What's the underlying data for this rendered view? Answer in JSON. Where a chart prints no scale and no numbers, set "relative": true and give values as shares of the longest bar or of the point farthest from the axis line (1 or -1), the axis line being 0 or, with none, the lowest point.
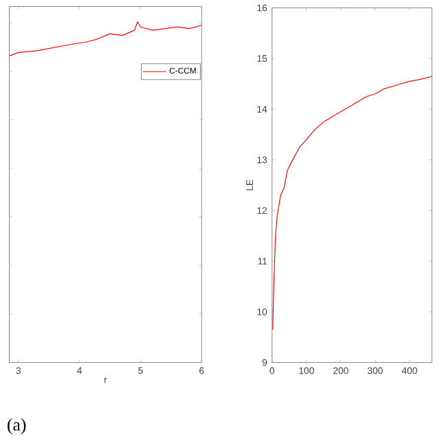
{
  "chart_data": [
    {
      "type": "line",
      "relative": true,
      "xlabel": "r",
      "xlim": [
        2.85,
        6
      ],
      "xticks": [
        3,
        4,
        5,
        6
      ],
      "tick_labels": "x",
      "legend": "top right",
      "annotations": [
        "(a)"
      ],
      "x": [
        2.85,
        3.0,
        3.3,
        3.6,
        3.9,
        4.1,
        4.3,
        4.5,
        4.7,
        4.9,
        4.95,
        5.0,
        5.2,
        5.4,
        5.6,
        5.8,
        6.0
      ],
      "series": [
        {
          "name": "C-CCM",
          "color": "#ff0000",
          "values": [
            0.9,
            0.91,
            0.915,
            0.925,
            0.935,
            0.94,
            0.95,
            0.965,
            0.96,
            0.975,
            1.0,
            0.985,
            0.975,
            0.98,
            0.985,
            0.98,
            0.99
          ]
        }
      ]
    },
    {
      "type": "line",
      "ylabel": "LE",
      "xlim": [
        0,
        465
      ],
      "xticks": [
        0,
        100,
        200,
        300,
        400
      ],
      "ylim": [
        9,
        16
      ],
      "yticks": [
        9,
        10,
        11,
        12,
        13,
        14,
        15,
        16
      ],
      "x": [
        2,
        5,
        10,
        15,
        25,
        35,
        45,
        60,
        80,
        100,
        125,
        150,
        175,
        200,
        225,
        250,
        275,
        300,
        325,
        350,
        375,
        400,
        425,
        450,
        465
      ],
      "series": [
        {
          "color": "#ff0000",
          "values": [
            9.65,
            10.5,
            11.5,
            11.9,
            12.3,
            12.45,
            12.8,
            13.0,
            13.25,
            13.4,
            13.6,
            13.75,
            13.85,
            13.95,
            14.05,
            14.15,
            14.25,
            14.3,
            14.4,
            14.45,
            14.5,
            14.55,
            14.58,
            14.62,
            14.65
          ]
        }
      ]
    }
  ]
}
